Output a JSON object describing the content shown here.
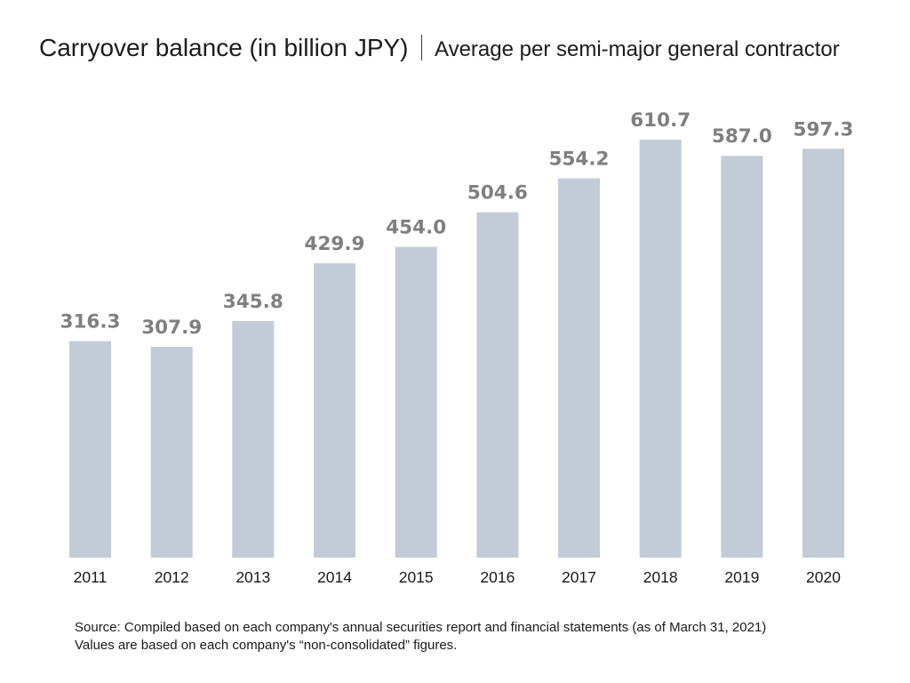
{
  "chart_data": {
    "type": "bar",
    "title": "Carryover balance (in billion JPY)",
    "subtitle": "Average per semi-major general contractor",
    "categories": [
      "2011",
      "2012",
      "2013",
      "2014",
      "2015",
      "2016",
      "2017",
      "2018",
      "2019",
      "2020"
    ],
    "values": [
      316.3,
      307.9,
      345.8,
      429.9,
      454.0,
      504.6,
      554.2,
      610.7,
      587.0,
      597.3
    ],
    "data_labels": [
      "316.3",
      "307.9",
      "345.8",
      "429.9",
      "454.0",
      "504.6",
      "554.2",
      "610.7",
      "587.0",
      "597.3"
    ],
    "xlabel": "",
    "ylabel": "",
    "y_axis_visible": false,
    "grid": false,
    "legend": "none",
    "bar_color": "#c3cbd7",
    "label_color": "#7f7f7f"
  },
  "footer": {
    "source": "Source: Compiled based on each company's annual securities report and financial statements (as of March 31, 2021)",
    "note": "Values are based on each company's “non-consolidated” figures."
  }
}
